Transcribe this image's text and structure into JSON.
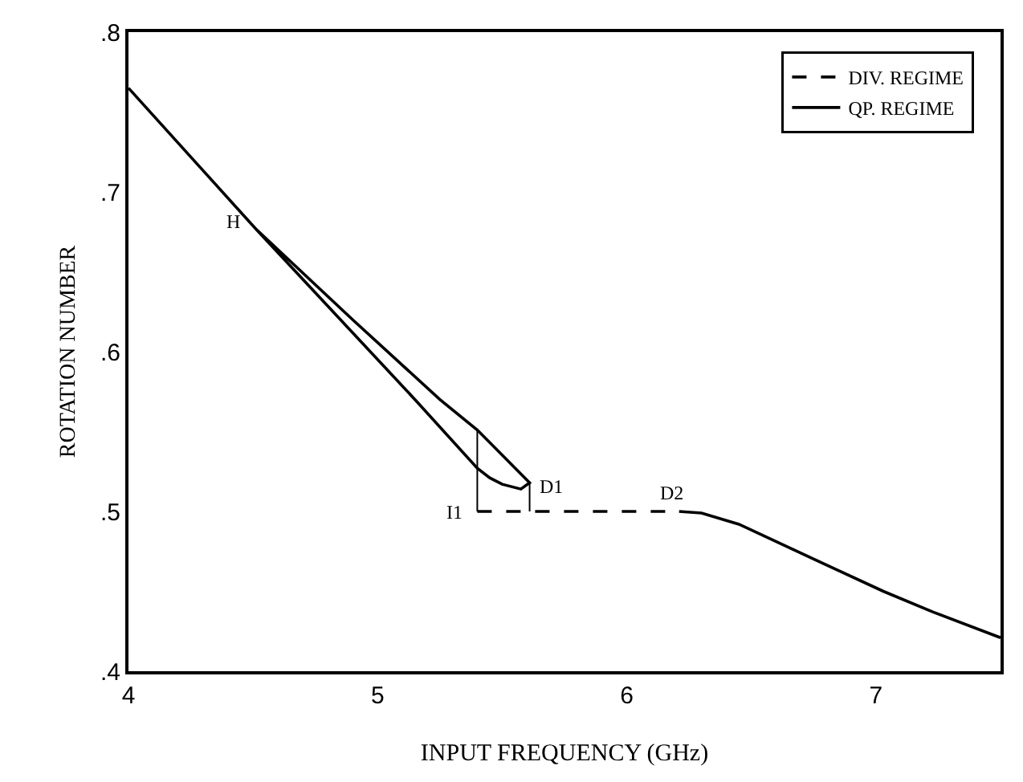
{
  "chart_data": {
    "type": "line",
    "xlabel": "INPUT FREQUENCY (GHz)",
    "ylabel": "ROTATION NUMBER",
    "xlim": [
      4,
      7.5
    ],
    "xticks": [
      4,
      5,
      6,
      7
    ],
    "ylim": [
      0.4,
      0.8
    ],
    "yticks": [
      {
        "value": 0.4,
        "label": ".4"
      },
      {
        "value": 0.5,
        "label": ".5"
      },
      {
        "value": 0.6,
        "label": ".6"
      },
      {
        "value": 0.7,
        "label": ".7"
      },
      {
        "value": 0.8,
        "label": ".8"
      }
    ],
    "legend": "top right",
    "series": [
      {
        "name": "DIV. REGIME",
        "color": "#000000",
        "line_style": "dashed",
        "x": [
          5.4,
          6.21
        ],
        "values": [
          0.5,
          0.5
        ]
      },
      {
        "name": "QP. REGIME",
        "color": "#000000",
        "line_style": "solid",
        "x": [
          4.0,
          4.51,
          4.9,
          5.25,
          5.4,
          5.61,
          5.575,
          5.5,
          5.45,
          5.4,
          5.15,
          4.51
        ],
        "values": [
          0.765,
          0.677,
          0.62,
          0.57,
          0.551,
          0.518,
          0.514,
          0.517,
          0.521,
          0.527,
          0.57,
          0.677
        ]
      },
      {
        "color": "#000000",
        "line_style": "solid",
        "x": [
          6.21,
          6.3,
          6.45,
          6.78,
          7.03,
          7.23,
          7.5
        ],
        "values": [
          0.5,
          0.499,
          0.492,
          0.468,
          0.45,
          0.437,
          0.421
        ]
      },
      {
        "color": "#000000",
        "line_style": "solid",
        "x": [
          5.4,
          5.4
        ],
        "values": [
          0.5,
          0.551
        ]
      },
      {
        "color": "#000000",
        "line_style": "solid",
        "x": [
          5.61,
          5.61
        ],
        "values": [
          0.518,
          0.5
        ]
      }
    ],
    "annotations": [
      {
        "text": "H",
        "x": 4.51,
        "y": 0.677
      },
      {
        "text": "D1",
        "x": 5.61,
        "y": 0.518
      },
      {
        "text": "I1",
        "x": 5.4,
        "y": 0.5
      },
      {
        "text": "D2",
        "x": 6.21,
        "y": 0.5
      }
    ]
  }
}
